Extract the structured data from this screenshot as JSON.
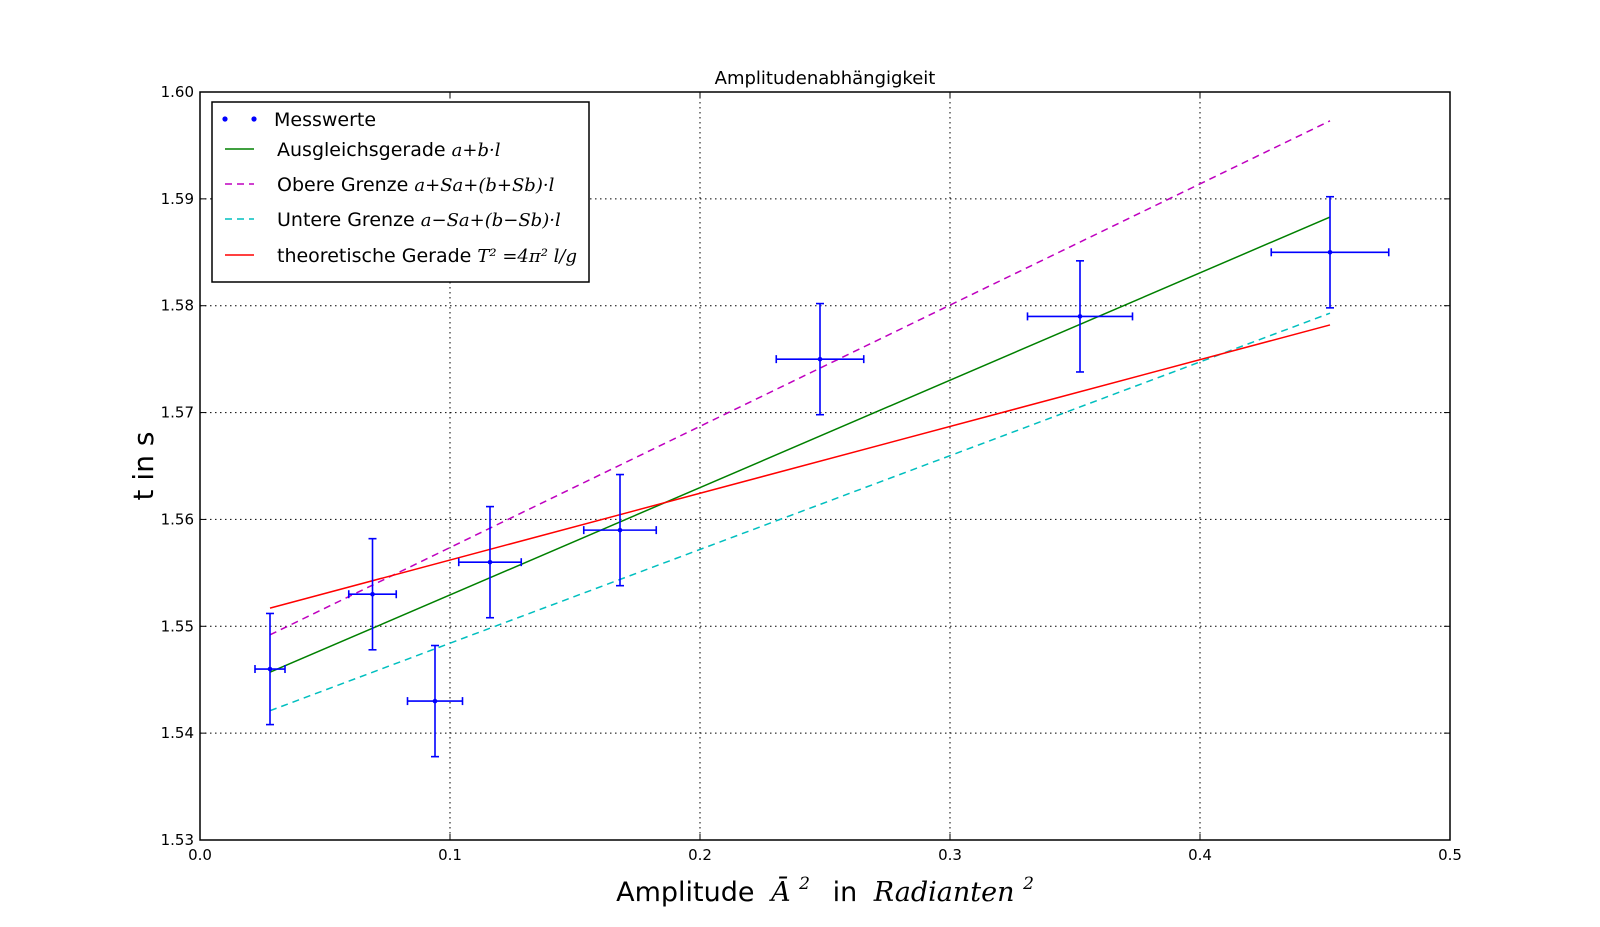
{
  "chart_data": {
    "type": "scatter",
    "title": "Amplitudenabhängigkeit",
    "xlabel": {
      "text": "Amplitude",
      "symbol": "Ā",
      "symbol_exp": "2",
      "connector": "in",
      "unit": "Radianten",
      "unit_exp": "2"
    },
    "ylabel": "t in s",
    "xlim": [
      0.0,
      0.5
    ],
    "ylim": [
      1.53,
      1.6
    ],
    "xticks": [
      "0.0",
      "0.1",
      "0.2",
      "0.3",
      "0.4",
      "0.5"
    ],
    "yticks": [
      "1.53",
      "1.54",
      "1.55",
      "1.56",
      "1.57",
      "1.58",
      "1.59",
      "1.60"
    ],
    "grid": true,
    "legend_position": "upper-left",
    "measurements": {
      "name": "Messwerte",
      "color": "#0000ff",
      "points": [
        {
          "x": 0.028,
          "y": 1.546,
          "xerr": 0.006,
          "yerr": 0.0052
        },
        {
          "x": 0.069,
          "y": 1.553,
          "xerr": 0.0095,
          "yerr": 0.0052
        },
        {
          "x": 0.094,
          "y": 1.543,
          "xerr": 0.011,
          "yerr": 0.0052
        },
        {
          "x": 0.116,
          "y": 1.556,
          "xerr": 0.0125,
          "yerr": 0.0052
        },
        {
          "x": 0.168,
          "y": 1.559,
          "xerr": 0.0145,
          "yerr": 0.0052
        },
        {
          "x": 0.248,
          "y": 1.575,
          "xerr": 0.0175,
          "yerr": 0.0052
        },
        {
          "x": 0.352,
          "y": 1.579,
          "xerr": 0.021,
          "yerr": 0.0052
        },
        {
          "x": 0.452,
          "y": 1.585,
          "xerr": 0.0235,
          "yerr": 0.0052
        }
      ]
    },
    "lines": [
      {
        "name": "Ausgleichsgerade",
        "formula": "a+b·l",
        "color": "#008000",
        "dash": false,
        "x": [
          0.028,
          0.452
        ],
        "y": [
          1.5457,
          1.5883
        ]
      },
      {
        "name": "Obere Grenze",
        "formula": "a+Sa+(b+Sb)·l",
        "color": "#bf00bf",
        "dash": true,
        "x": [
          0.028,
          0.452
        ],
        "y": [
          1.5492,
          1.5973
        ]
      },
      {
        "name": "Untere Grenze",
        "formula": "a−Sa+(b−Sb)·l",
        "color": "#00bfbf",
        "dash": true,
        "x": [
          0.028,
          0.452
        ],
        "y": [
          1.5421,
          1.5793
        ]
      },
      {
        "name": "theoretische Gerade",
        "formula": "T² =4π² l/g",
        "color": "#ff0000",
        "dash": false,
        "x": [
          0.028,
          0.452
        ],
        "y": [
          1.5517,
          1.5782
        ]
      }
    ]
  }
}
